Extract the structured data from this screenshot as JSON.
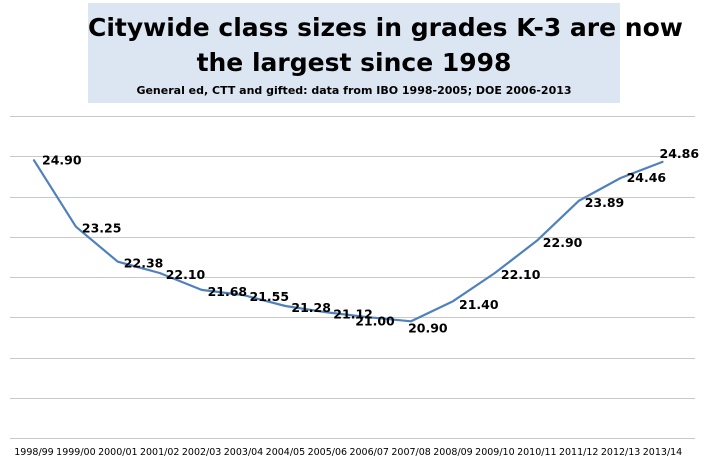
{
  "chart_data": {
    "type": "line",
    "title": "Citywide class sizes in grades K-3 are now the largest since 1998",
    "title_lines": [
      "Citywide class sizes in grades K-3 are now",
      "the largest since 1998"
    ],
    "subtitle": "General ed, CTT and gifted: data from IBO 1998-2005; DOE 2006-2013",
    "categories": [
      "1998/99",
      "1999/00",
      "2000/01",
      "2001/02",
      "2002/03",
      "2003/04",
      "2004/05",
      "2005/06",
      "2006/07",
      "2007/08",
      "2008/09",
      "2009/10",
      "2010/11",
      "2011/12",
      "2012/13",
      "2013/14"
    ],
    "values": [
      24.9,
      23.25,
      22.38,
      22.1,
      21.68,
      21.55,
      21.28,
      21.12,
      21.0,
      20.9,
      21.4,
      22.1,
      22.9,
      23.89,
      24.46,
      24.86
    ],
    "value_labels": [
      "24.90",
      "23.25",
      "22.38",
      "22.10",
      "21.68",
      "21.55",
      "21.28",
      "21.12",
      "21.00",
      "20.90",
      "21.40",
      "22.10",
      "22.90",
      "23.89",
      "24.46",
      "24.86"
    ],
    "ylim": [
      18,
      26
    ],
    "y_gridlines": [
      18,
      19,
      20,
      21,
      22,
      23,
      24,
      25,
      26
    ],
    "y_tick_labels_shown": false,
    "grid": true,
    "legend": "none",
    "xlabel": "",
    "ylabel": "",
    "colors": {
      "line": "#4f81bd",
      "grid": "#c8c8c8",
      "title_background": "#dce6f2"
    }
  }
}
